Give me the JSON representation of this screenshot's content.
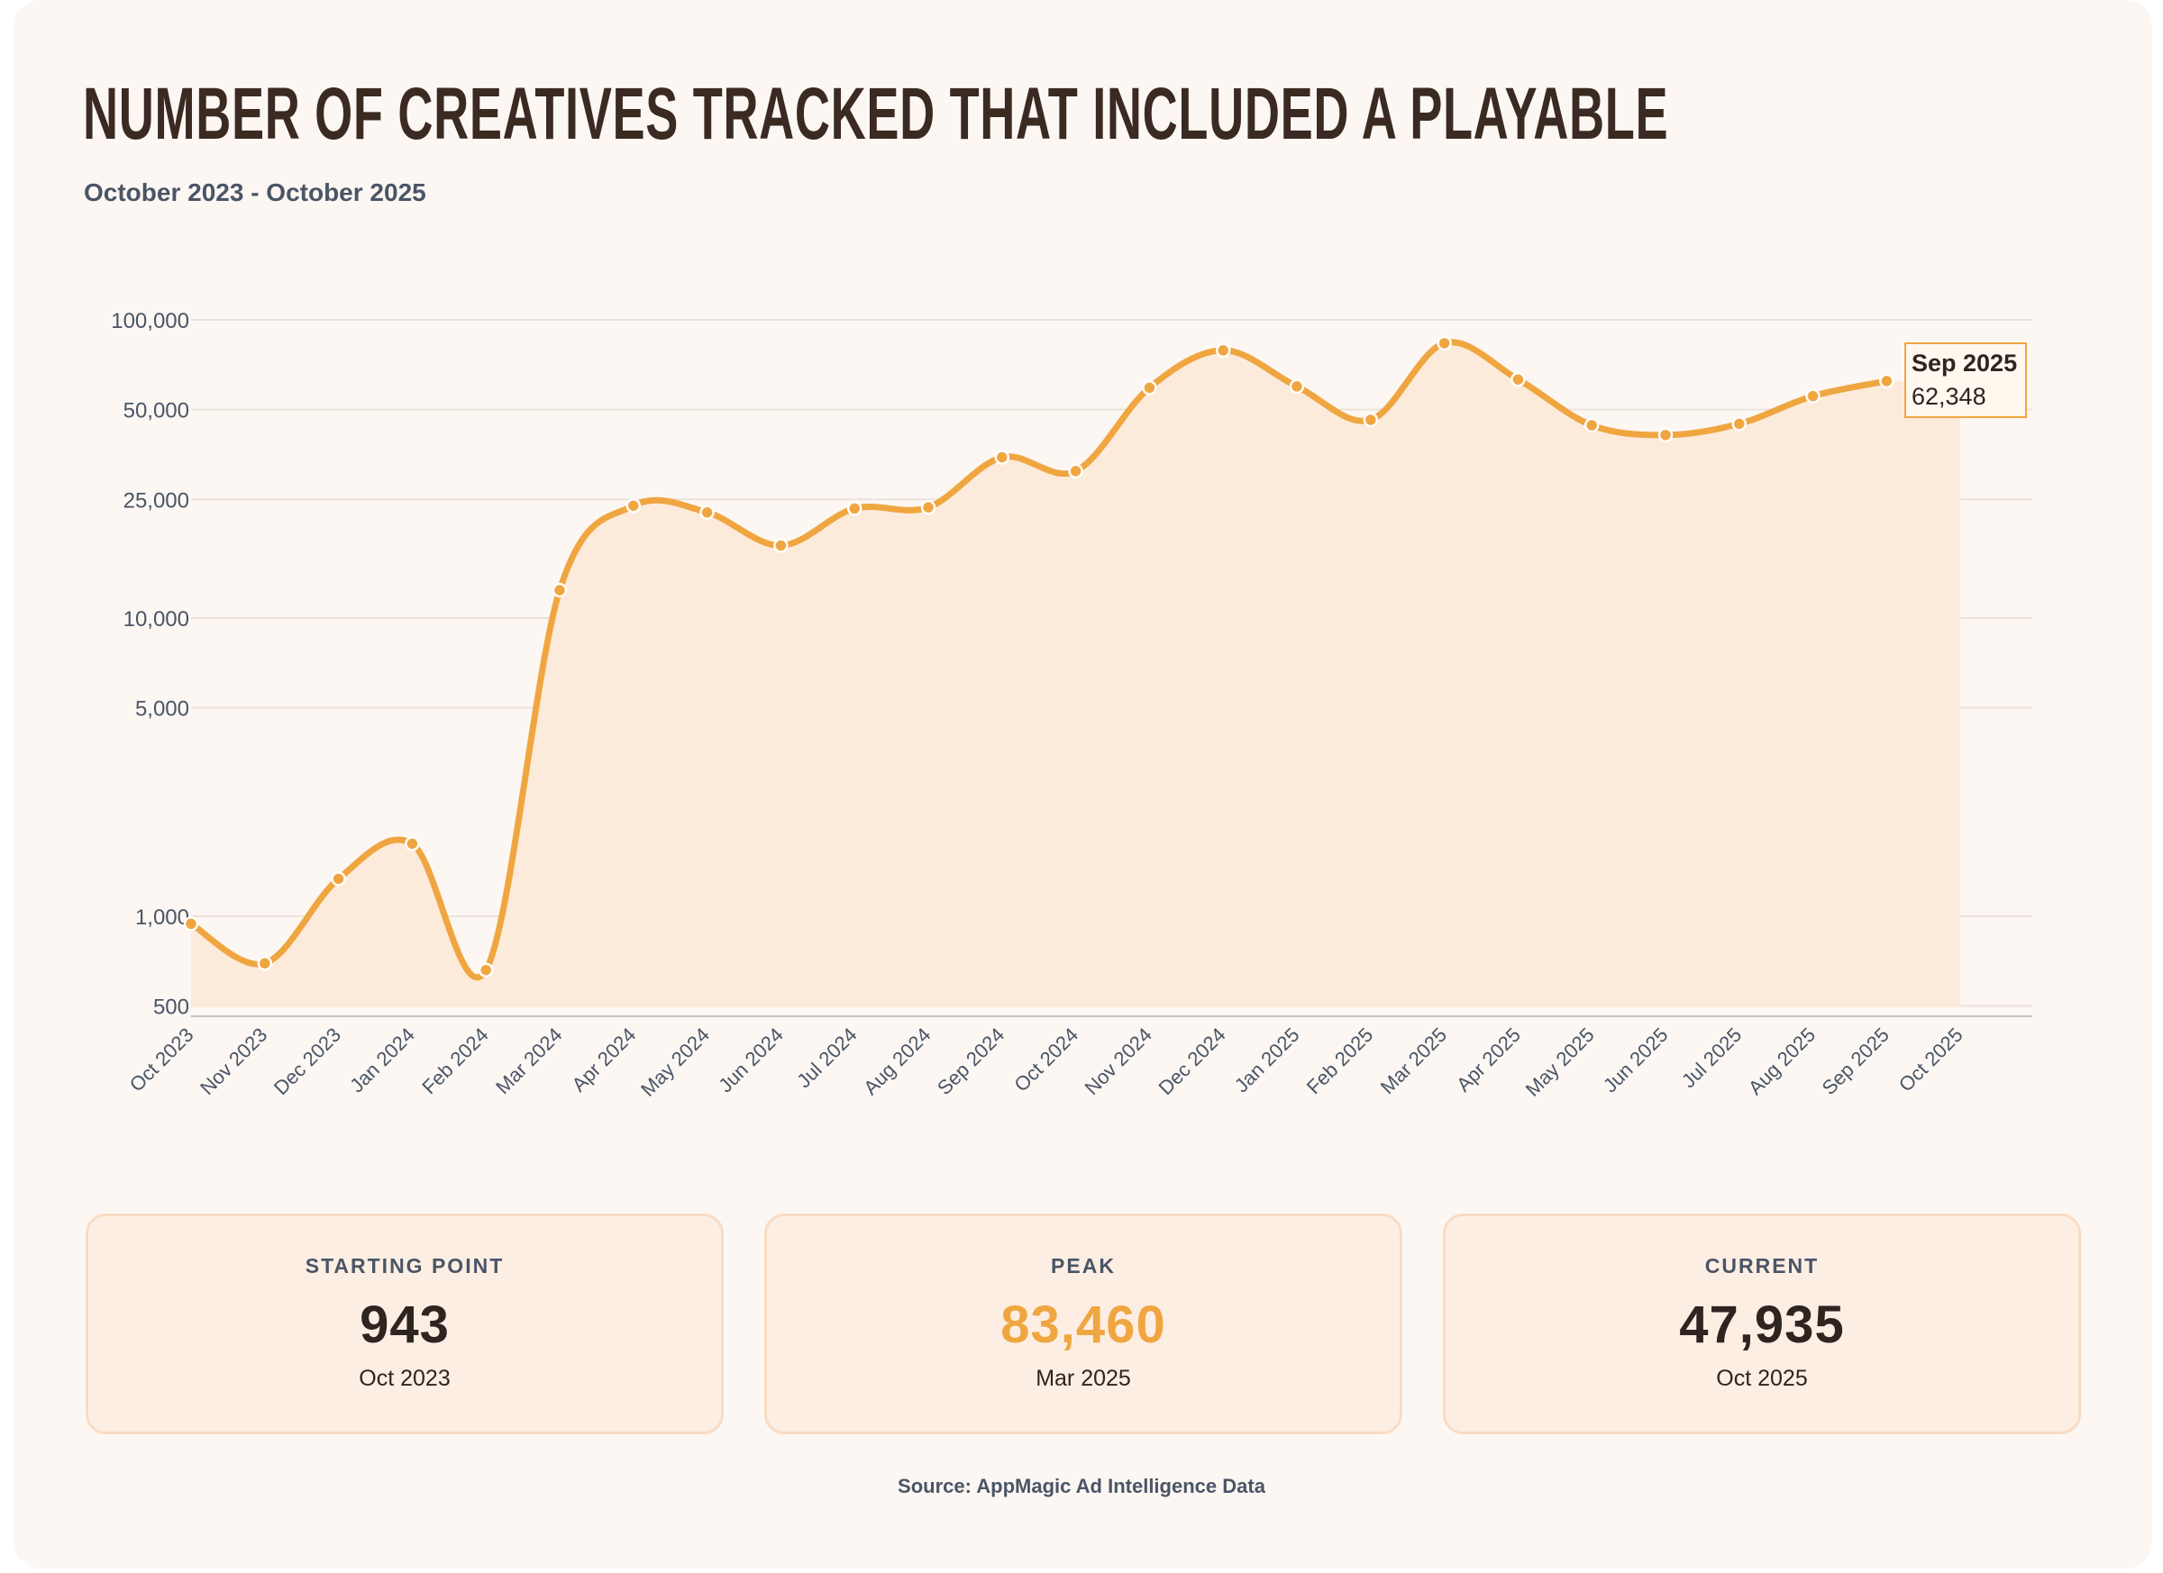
{
  "title": "NUMBER OF CREATIVES TRACKED THAT INCLUDED A PLAYABLE",
  "subtitle": "October 2023 - October 2025",
  "chart_data": {
    "type": "line",
    "yscale": "log",
    "ylim": [
      500,
      100000
    ],
    "yticks": [
      100000,
      50000,
      25000,
      10000,
      5000,
      1000,
      500
    ],
    "ytick_labels": [
      "100,000",
      "50,000",
      "25,000",
      "10,000",
      "5,000",
      "1,000",
      "500"
    ],
    "categories": [
      "Oct 2023",
      "Nov 2023",
      "Dec 2023",
      "Jan 2024",
      "Feb 2024",
      "Mar 2024",
      "Apr 2024",
      "May 2024",
      "Jun 2024",
      "Jul 2024",
      "Aug 2024",
      "Sep 2024",
      "Oct 2024",
      "Nov 2024",
      "Dec 2024",
      "Jan 2025",
      "Feb 2025",
      "Mar 2025",
      "Apr 2025",
      "May 2025",
      "Jun 2025",
      "Jul 2025",
      "Aug 2025",
      "Sep 2025",
      "Oct 2025"
    ],
    "values": [
      943,
      695,
      1335,
      1750,
      660,
      12400,
      23800,
      22600,
      17500,
      23300,
      23500,
      34600,
      31100,
      59200,
      79000,
      59800,
      46200,
      83460,
      63100,
      44300,
      41100,
      44800,
      55500,
      62348,
      null
    ],
    "series_color": "#f0a640",
    "fill_color": "#fcebdb",
    "grid": true,
    "tooltip": {
      "month": "Sep 2025",
      "value": "62,348"
    }
  },
  "stats": [
    {
      "label": "STARTING POINT",
      "value": "943",
      "date": "Oct 2023",
      "color": "#2e2420"
    },
    {
      "label": "PEAK",
      "value": "83,460",
      "date": "Mar 2025",
      "color": "#f0a640"
    },
    {
      "label": "CURRENT",
      "value": "47,935",
      "date": "Oct 2025",
      "color": "#2e2420"
    }
  ],
  "source": "Source: AppMagic Ad Intelligence Data"
}
